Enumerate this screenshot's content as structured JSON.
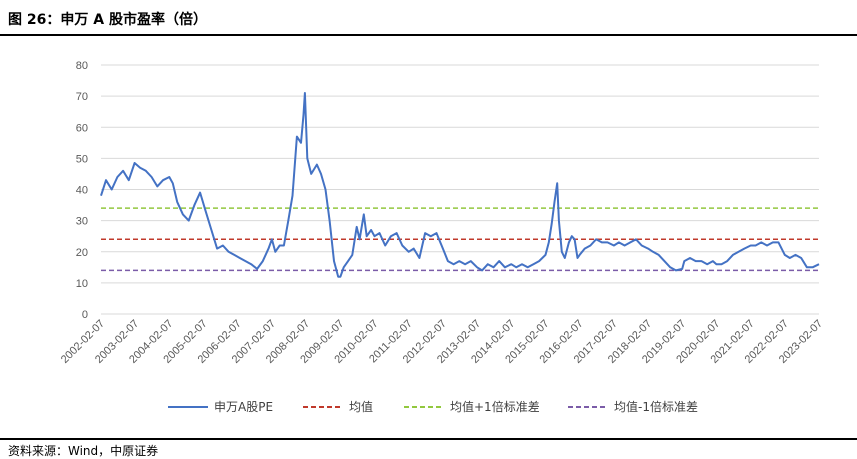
{
  "page": {
    "title": "图 26：申万 A 股市盈率（倍）",
    "source": "资料来源：Wind，中原证券"
  },
  "chart_data": {
    "type": "line",
    "title": "",
    "xlabel": "",
    "ylabel": "",
    "ylim": [
      0,
      80
    ],
    "yticks": [
      0,
      10,
      20,
      30,
      40,
      50,
      60,
      70,
      80
    ],
    "grid": true,
    "legend_position": "bottom",
    "x_tick_labels": [
      "2002-02-07",
      "2003-02-07",
      "2004-02-07",
      "2005-02-07",
      "2006-02-07",
      "2007-02-07",
      "2008-02-07",
      "2009-02-07",
      "2010-02-07",
      "2011-02-07",
      "2012-02-07",
      "2013-02-07",
      "2014-02-07",
      "2015-02-07",
      "2016-02-07",
      "2017-02-07",
      "2018-02-07",
      "2019-02-07",
      "2020-02-07",
      "2021-02-07",
      "2022-02-07",
      "2023-02-07"
    ],
    "x_range": [
      "2002-02-07",
      "2023-02-07"
    ],
    "series": [
      {
        "name": "申万A股PE",
        "style": "solid",
        "color": "#4472c4",
        "points": [
          [
            "2002-02-07",
            38
          ],
          [
            "2002-04-01",
            43
          ],
          [
            "2002-06-01",
            40
          ],
          [
            "2002-08-01",
            44
          ],
          [
            "2002-10-01",
            46
          ],
          [
            "2002-12-01",
            43
          ],
          [
            "2003-02-01",
            48.5
          ],
          [
            "2003-04-01",
            47
          ],
          [
            "2003-06-01",
            46
          ],
          [
            "2003-08-01",
            44
          ],
          [
            "2003-10-01",
            41
          ],
          [
            "2003-12-01",
            43
          ],
          [
            "2004-02-07",
            44
          ],
          [
            "2004-03-15",
            42
          ],
          [
            "2004-05-01",
            36
          ],
          [
            "2004-07-01",
            32
          ],
          [
            "2004-09-01",
            30
          ],
          [
            "2004-11-01",
            35
          ],
          [
            "2005-01-01",
            39
          ],
          [
            "2005-03-01",
            33
          ],
          [
            "2005-05-01",
            27
          ],
          [
            "2005-07-01",
            21
          ],
          [
            "2005-09-01",
            22
          ],
          [
            "2005-11-01",
            20
          ],
          [
            "2006-01-01",
            19
          ],
          [
            "2006-03-01",
            18
          ],
          [
            "2006-05-01",
            17
          ],
          [
            "2006-07-01",
            16
          ],
          [
            "2006-09-01",
            14.5
          ],
          [
            "2006-11-01",
            17
          ],
          [
            "2007-01-01",
            21
          ],
          [
            "2007-02-07",
            24
          ],
          [
            "2007-03-15",
            20
          ],
          [
            "2007-05-01",
            22
          ],
          [
            "2007-06-15",
            22
          ],
          [
            "2007-08-01",
            30
          ],
          [
            "2007-09-15",
            38
          ],
          [
            "2007-11-01",
            57
          ],
          [
            "2007-12-15",
            55
          ],
          [
            "2008-01-10",
            64
          ],
          [
            "2008-01-25",
            71
          ],
          [
            "2008-02-20",
            50
          ],
          [
            "2008-04-01",
            45
          ],
          [
            "2008-06-01",
            48
          ],
          [
            "2008-07-15",
            45
          ],
          [
            "2008-09-01",
            40
          ],
          [
            "2008-10-15",
            30
          ],
          [
            "2008-12-01",
            17
          ],
          [
            "2009-01-15",
            12
          ],
          [
            "2009-02-07",
            12
          ],
          [
            "2009-03-15",
            15
          ],
          [
            "2009-05-01",
            17
          ],
          [
            "2009-06-15",
            19
          ],
          [
            "2009-08-01",
            28
          ],
          [
            "2009-09-01",
            24
          ],
          [
            "2009-10-15",
            32
          ],
          [
            "2009-11-15",
            25
          ],
          [
            "2010-01-01",
            27
          ],
          [
            "2010-02-07",
            25
          ],
          [
            "2010-04-01",
            26
          ],
          [
            "2010-06-01",
            22
          ],
          [
            "2010-08-01",
            25
          ],
          [
            "2010-10-01",
            26
          ],
          [
            "2010-12-01",
            22
          ],
          [
            "2011-02-07",
            20
          ],
          [
            "2011-04-01",
            21
          ],
          [
            "2011-06-01",
            18
          ],
          [
            "2011-08-01",
            26
          ],
          [
            "2011-10-01",
            25
          ],
          [
            "2011-12-01",
            26
          ],
          [
            "2012-02-07",
            21
          ],
          [
            "2012-04-01",
            17
          ],
          [
            "2012-06-01",
            16
          ],
          [
            "2012-08-01",
            17
          ],
          [
            "2012-10-01",
            16
          ],
          [
            "2012-12-01",
            17
          ],
          [
            "2013-02-07",
            15
          ],
          [
            "2013-04-01",
            14
          ],
          [
            "2013-06-01",
            16
          ],
          [
            "2013-08-01",
            15
          ],
          [
            "2013-10-01",
            17
          ],
          [
            "2013-12-01",
            15
          ],
          [
            "2014-02-07",
            16
          ],
          [
            "2014-04-01",
            15
          ],
          [
            "2014-06-01",
            16
          ],
          [
            "2014-08-01",
            15
          ],
          [
            "2014-10-01",
            16
          ],
          [
            "2014-12-01",
            17
          ],
          [
            "2015-02-07",
            19
          ],
          [
            "2015-03-15",
            23
          ],
          [
            "2015-04-15",
            29
          ],
          [
            "2015-05-15",
            36
          ],
          [
            "2015-06-12",
            42
          ],
          [
            "2015-07-01",
            30
          ],
          [
            "2015-08-01",
            20
          ],
          [
            "2015-09-01",
            18
          ],
          [
            "2015-10-15",
            23
          ],
          [
            "2015-11-15",
            25
          ],
          [
            "2015-12-15",
            24
          ],
          [
            "2016-01-15",
            18
          ],
          [
            "2016-02-07",
            19
          ],
          [
            "2016-04-01",
            21
          ],
          [
            "2016-06-01",
            22
          ],
          [
            "2016-08-01",
            24
          ],
          [
            "2016-10-01",
            23
          ],
          [
            "2016-12-01",
            23
          ],
          [
            "2017-02-07",
            22
          ],
          [
            "2017-04-01",
            23
          ],
          [
            "2017-06-01",
            22
          ],
          [
            "2017-08-01",
            23
          ],
          [
            "2017-10-01",
            24
          ],
          [
            "2017-12-01",
            22
          ],
          [
            "2018-02-07",
            21
          ],
          [
            "2018-04-01",
            20
          ],
          [
            "2018-06-01",
            19
          ],
          [
            "2018-08-01",
            17
          ],
          [
            "2018-10-01",
            15
          ],
          [
            "2018-12-01",
            14
          ],
          [
            "2019-02-07",
            14.5
          ],
          [
            "2019-03-01",
            17
          ],
          [
            "2019-05-01",
            18
          ],
          [
            "2019-07-01",
            17
          ],
          [
            "2019-09-01",
            17
          ],
          [
            "2019-11-01",
            16
          ],
          [
            "2020-01-01",
            17
          ],
          [
            "2020-02-07",
            16
          ],
          [
            "2020-04-01",
            16
          ],
          [
            "2020-06-01",
            17
          ],
          [
            "2020-08-01",
            19
          ],
          [
            "2020-10-01",
            20
          ],
          [
            "2020-12-01",
            21
          ],
          [
            "2021-02-07",
            22
          ],
          [
            "2021-04-01",
            22
          ],
          [
            "2021-06-01",
            23
          ],
          [
            "2021-08-01",
            22
          ],
          [
            "2021-10-01",
            23
          ],
          [
            "2021-12-01",
            23
          ],
          [
            "2022-02-07",
            19
          ],
          [
            "2022-04-01",
            18
          ],
          [
            "2022-06-01",
            19
          ],
          [
            "2022-08-01",
            18
          ],
          [
            "2022-10-01",
            15
          ],
          [
            "2022-12-01",
            15
          ],
          [
            "2023-02-07",
            16
          ]
        ]
      },
      {
        "name": "均值",
        "style": "dashed",
        "color": "#c0392b",
        "value": 24
      },
      {
        "name": "均值+1倍标准差",
        "style": "dashed",
        "color": "#92c83e",
        "value": 34
      },
      {
        "name": "均值-1倍标准差",
        "style": "dashed",
        "color": "#7b5ca8",
        "value": 14
      }
    ]
  }
}
